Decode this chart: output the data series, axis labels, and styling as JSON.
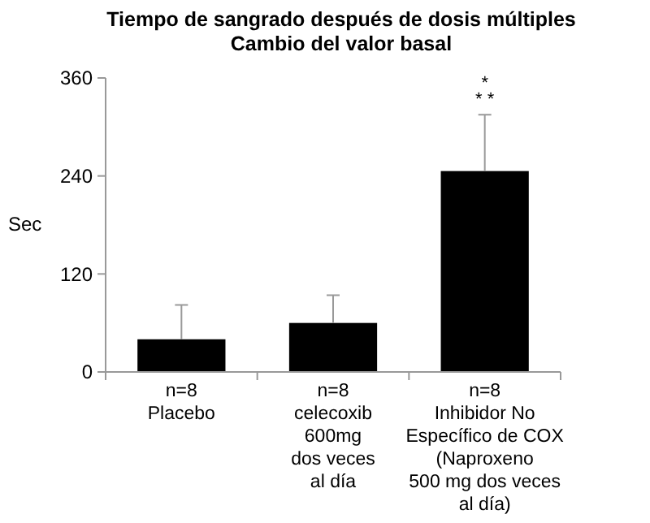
{
  "chart_data": {
    "type": "bar",
    "title": "Tiempo de sangrado después de dosis múltiples\nCambio del valor basal",
    "ylabel": "Sec",
    "categories": [
      "n=8\nPlacebo",
      "n=8\ncelecoxib\n600mg\ndos veces\nal día",
      "n=8\nInhibidor No\nEspecífico de COX\n(Naproxeno\n500 mg dos veces\nal día)"
    ],
    "values": [
      40,
      60,
      246
    ],
    "color": "#000000",
    "errors": [
      [
        40,
        82
      ],
      [
        60,
        94
      ],
      [
        246,
        315
      ]
    ],
    "ylim": [
      0,
      360
    ],
    "yticks": [
      0,
      120,
      240,
      360
    ],
    "grid": false,
    "annotations": [
      "* *",
      "*"
    ]
  }
}
